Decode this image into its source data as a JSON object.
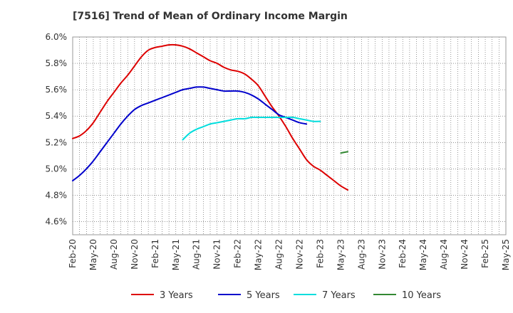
{
  "chart_data": {
    "type": "line",
    "title": "[7516]  Trend of Mean of Ordinary Income Margin",
    "xlabel": "",
    "ylabel": "",
    "ylim": [
      4.5,
      6.0
    ],
    "y_ticks": [
      "4.6%",
      "4.8%",
      "5.0%",
      "5.2%",
      "5.4%",
      "5.6%",
      "5.8%",
      "6.0%"
    ],
    "y_tick_values": [
      4.6,
      4.8,
      5.0,
      5.2,
      5.4,
      5.6,
      5.8,
      6.0
    ],
    "x_ticks": [
      "Feb-20",
      "May-20",
      "Aug-20",
      "Nov-20",
      "Feb-21",
      "May-21",
      "Aug-21",
      "Nov-21",
      "Feb-22",
      "May-22",
      "Aug-22",
      "Nov-22",
      "Feb-23",
      "May-23",
      "Aug-23",
      "Nov-23",
      "Feb-24",
      "May-24",
      "Aug-24",
      "Nov-24",
      "Feb-25",
      "May-25"
    ],
    "grid": true,
    "legend_position": "bottom",
    "series": [
      {
        "name": "3 Years",
        "color": "#dd0000",
        "start_index": 0,
        "values": [
          5.23,
          5.25,
          5.29,
          5.35,
          5.43,
          5.51,
          5.58,
          5.65,
          5.71,
          5.78,
          5.85,
          5.9,
          5.92,
          5.93,
          5.94,
          5.94,
          5.93,
          5.91,
          5.88,
          5.85,
          5.82,
          5.8,
          5.77,
          5.75,
          5.74,
          5.72,
          5.68,
          5.63,
          5.55,
          5.47,
          5.4,
          5.32,
          5.23,
          5.15,
          5.07,
          5.02,
          4.99,
          4.95,
          4.91,
          4.87,
          4.84
        ]
      },
      {
        "name": "5 Years",
        "color": "#0000cc",
        "start_index": 0,
        "values": [
          4.91,
          4.95,
          5.0,
          5.06,
          5.13,
          5.2,
          5.27,
          5.34,
          5.4,
          5.45,
          5.48,
          5.5,
          5.52,
          5.54,
          5.56,
          5.58,
          5.6,
          5.61,
          5.62,
          5.62,
          5.61,
          5.6,
          5.59,
          5.59,
          5.59,
          5.58,
          5.56,
          5.53,
          5.49,
          5.45,
          5.41,
          5.39,
          5.37,
          5.35,
          5.34
        ]
      },
      {
        "name": "7 Years",
        "color": "#00dddd",
        "start_index": 16,
        "values": [
          5.22,
          5.27,
          5.3,
          5.32,
          5.34,
          5.35,
          5.36,
          5.37,
          5.38,
          5.38,
          5.39,
          5.39,
          5.39,
          5.39,
          5.39,
          5.39,
          5.39,
          5.38,
          5.37,
          5.36,
          5.36
        ]
      },
      {
        "name": "10 Years",
        "color": "#338833",
        "start_index": 39,
        "values": [
          5.12,
          5.13
        ]
      }
    ]
  }
}
